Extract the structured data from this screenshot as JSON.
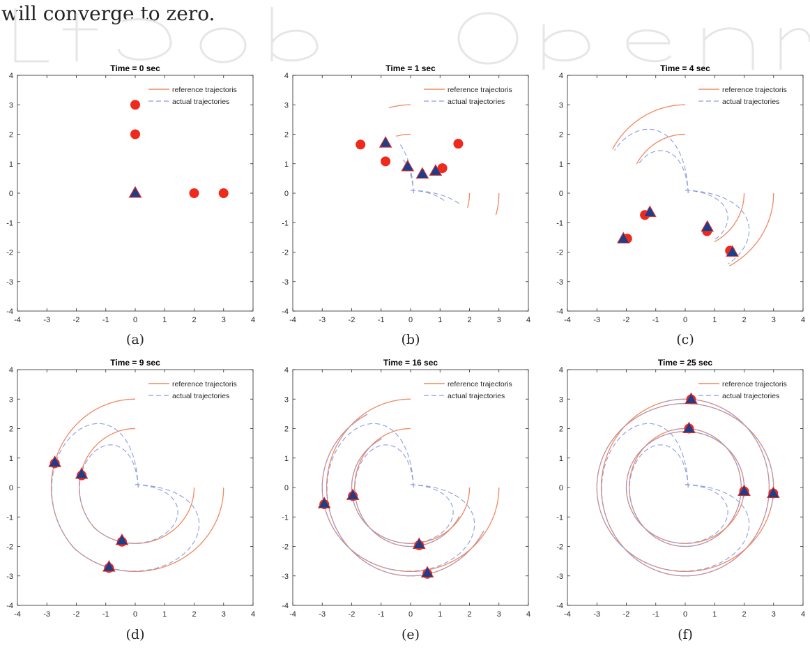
{
  "page": {
    "intro_text": "will converge to zero.",
    "legend": {
      "reference": "reference trajectoris",
      "actual": "actual trajectories"
    },
    "colors": {
      "reference": "#f08860",
      "actual": "#8c9be0",
      "marker_ref": "#ee2a1c",
      "marker_act": "#1c3f8c"
    }
  },
  "chart_data": [
    {
      "type": "scatter",
      "title": "Time = 0 sec",
      "sub_label": "(a)",
      "t": 0,
      "xlim": [
        -4,
        4
      ],
      "ylim": [
        -4,
        4
      ],
      "xticks": [
        -4,
        -3,
        -2,
        -1,
        0,
        1,
        2,
        3,
        4
      ],
      "yticks": [
        -4,
        -3,
        -2,
        -1,
        0,
        1,
        2,
        3,
        4
      ],
      "reference_points": [
        [
          0,
          3
        ],
        [
          0,
          2
        ],
        [
          2,
          0
        ],
        [
          3,
          0
        ]
      ],
      "actual_points": [
        [
          0,
          0
        ],
        [
          0,
          0
        ],
        [
          0,
          0
        ],
        [
          0,
          0
        ]
      ]
    },
    {
      "type": "scatter",
      "title": "Time = 1 sec",
      "sub_label": "(b)",
      "t": 1,
      "xlim": [
        -4,
        4
      ],
      "ylim": [
        -4,
        4
      ],
      "xticks": [
        -4,
        -3,
        -2,
        -1,
        0,
        1,
        2,
        3,
        4
      ],
      "yticks": [
        -4,
        -3,
        -2,
        -1,
        0,
        1,
        2,
        3,
        4
      ],
      "reference_points": [
        [
          -1.7,
          1.65
        ],
        [
          -0.85,
          1.08
        ],
        [
          1.08,
          0.85
        ],
        [
          1.62,
          1.68
        ]
      ],
      "actual_points": [
        [
          -0.85,
          1.7
        ],
        [
          -0.1,
          0.9
        ],
        [
          0.4,
          0.65
        ],
        [
          0.85,
          0.75
        ]
      ]
    },
    {
      "type": "scatter",
      "title": "Time = 4 sec",
      "sub_label": "(c)",
      "t": 4,
      "xlim": [
        -4,
        4
      ],
      "ylim": [
        -4,
        4
      ],
      "xticks": [
        -4,
        -3,
        -2,
        -1,
        0,
        1,
        2,
        3,
        4
      ],
      "yticks": [
        -4,
        -3,
        -2,
        -1,
        0,
        1,
        2,
        3,
        4
      ],
      "reference_points": [
        [
          -1.97,
          -1.54
        ],
        [
          -1.37,
          -0.74
        ],
        [
          0.74,
          -1.29
        ],
        [
          1.52,
          -1.95
        ]
      ],
      "actual_points": [
        [
          -2.1,
          -1.55
        ],
        [
          -1.2,
          -0.65
        ],
        [
          0.75,
          -1.15
        ],
        [
          1.6,
          -2.0
        ]
      ]
    },
    {
      "type": "scatter",
      "title": "Time = 9 sec",
      "sub_label": "(d)",
      "t": 9,
      "xlim": [
        -4,
        4
      ],
      "ylim": [
        -4,
        4
      ],
      "xticks": [
        -4,
        -3,
        -2,
        -1,
        0,
        1,
        2,
        3,
        4
      ],
      "yticks": [
        -4,
        -3,
        -2,
        -1,
        0,
        1,
        2,
        3,
        4
      ],
      "reference_points": [
        [
          -2.73,
          0.82
        ],
        [
          -1.82,
          0.41
        ],
        [
          -0.45,
          -1.84
        ],
        [
          -0.89,
          -2.73
        ]
      ],
      "actual_points": [
        [
          -2.73,
          0.85
        ],
        [
          -1.82,
          0.45
        ],
        [
          -0.45,
          -1.8
        ],
        [
          -0.89,
          -2.7
        ]
      ]
    },
    {
      "type": "scatter",
      "title": "Time = 16 sec",
      "sub_label": "(e)",
      "t": 16,
      "xlim": [
        -4,
        4
      ],
      "ylim": [
        -4,
        4
      ],
      "xticks": [
        -4,
        -3,
        -2,
        -1,
        0,
        1,
        2,
        3,
        4
      ],
      "yticks": [
        -4,
        -3,
        -2,
        -1,
        0,
        1,
        2,
        3,
        4
      ],
      "reference_points": [
        [
          -2.93,
          -0.57
        ],
        [
          -1.96,
          -0.29
        ],
        [
          0.29,
          -1.96
        ],
        [
          0.57,
          -2.93
        ]
      ],
      "actual_points": [
        [
          -2.93,
          -0.55
        ],
        [
          -1.96,
          -0.27
        ],
        [
          0.29,
          -1.93
        ],
        [
          0.57,
          -2.9
        ]
      ]
    },
    {
      "type": "scatter",
      "title": "Time = 25 sec",
      "sub_label": "(f)",
      "t": 25,
      "xlim": [
        -4,
        4
      ],
      "ylim": [
        -4,
        4
      ],
      "xticks": [
        -4,
        -3,
        -2,
        -1,
        0,
        1,
        2,
        3,
        4
      ],
      "yticks": [
        -4,
        -3,
        -2,
        -1,
        0,
        1,
        2,
        3,
        4
      ],
      "reference_points": [
        [
          0.2,
          2.99
        ],
        [
          0.13,
          2.0
        ],
        [
          2.0,
          -0.13
        ],
        [
          2.99,
          -0.2
        ]
      ],
      "actual_points": [
        [
          0.2,
          2.99
        ],
        [
          0.13,
          2.0
        ],
        [
          2.0,
          -0.13
        ],
        [
          2.99,
          -0.2
        ]
      ]
    }
  ]
}
